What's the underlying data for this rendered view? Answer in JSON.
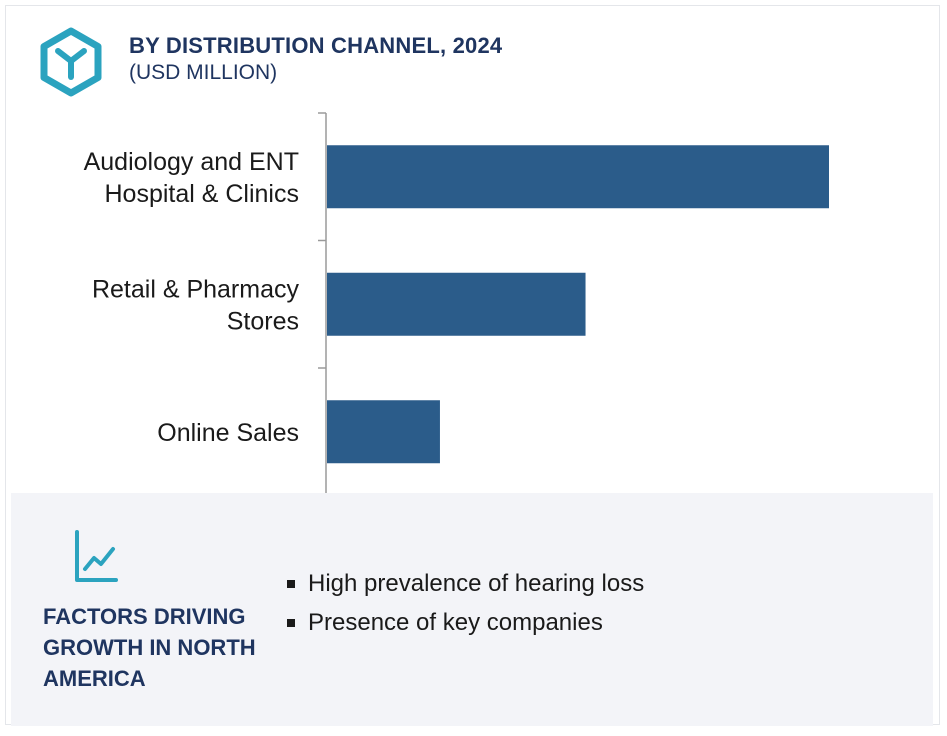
{
  "header": {
    "title": "BY DISTRIBUTION CHANNEL, 2024",
    "subtitle": "(USD MILLION)",
    "logo_icon": "hexagon-y-logo-icon"
  },
  "chart_data": {
    "type": "bar",
    "orientation": "horizontal",
    "title": "BY DISTRIBUTION CHANNEL, 2024",
    "unit": "(USD MILLION)",
    "categories": [
      [
        "Audiology and ENT",
        "Hospital & Clinics"
      ],
      [
        "Retail & Pharmacy",
        "Stores"
      ],
      [
        "Online Sales"
      ]
    ],
    "values": [
      100,
      51.5,
      22.5
    ],
    "value_scale": "relative (no axis ticks shown)",
    "xlim": [
      0,
      100
    ],
    "bar_color": "#2b5c8a",
    "grid": false,
    "legend": "none"
  },
  "factors": {
    "icon": "line-chart-icon",
    "title": "FACTORS DRIVING GROWTH IN NORTH AMERICA",
    "items": [
      "High prevalence of hearing loss",
      "Presence of key companies"
    ]
  },
  "colors": {
    "title": "#1f3560",
    "bar": "#2b5c8a",
    "logo": "#2ba3bf",
    "factors_background": "#f3f4f8"
  }
}
